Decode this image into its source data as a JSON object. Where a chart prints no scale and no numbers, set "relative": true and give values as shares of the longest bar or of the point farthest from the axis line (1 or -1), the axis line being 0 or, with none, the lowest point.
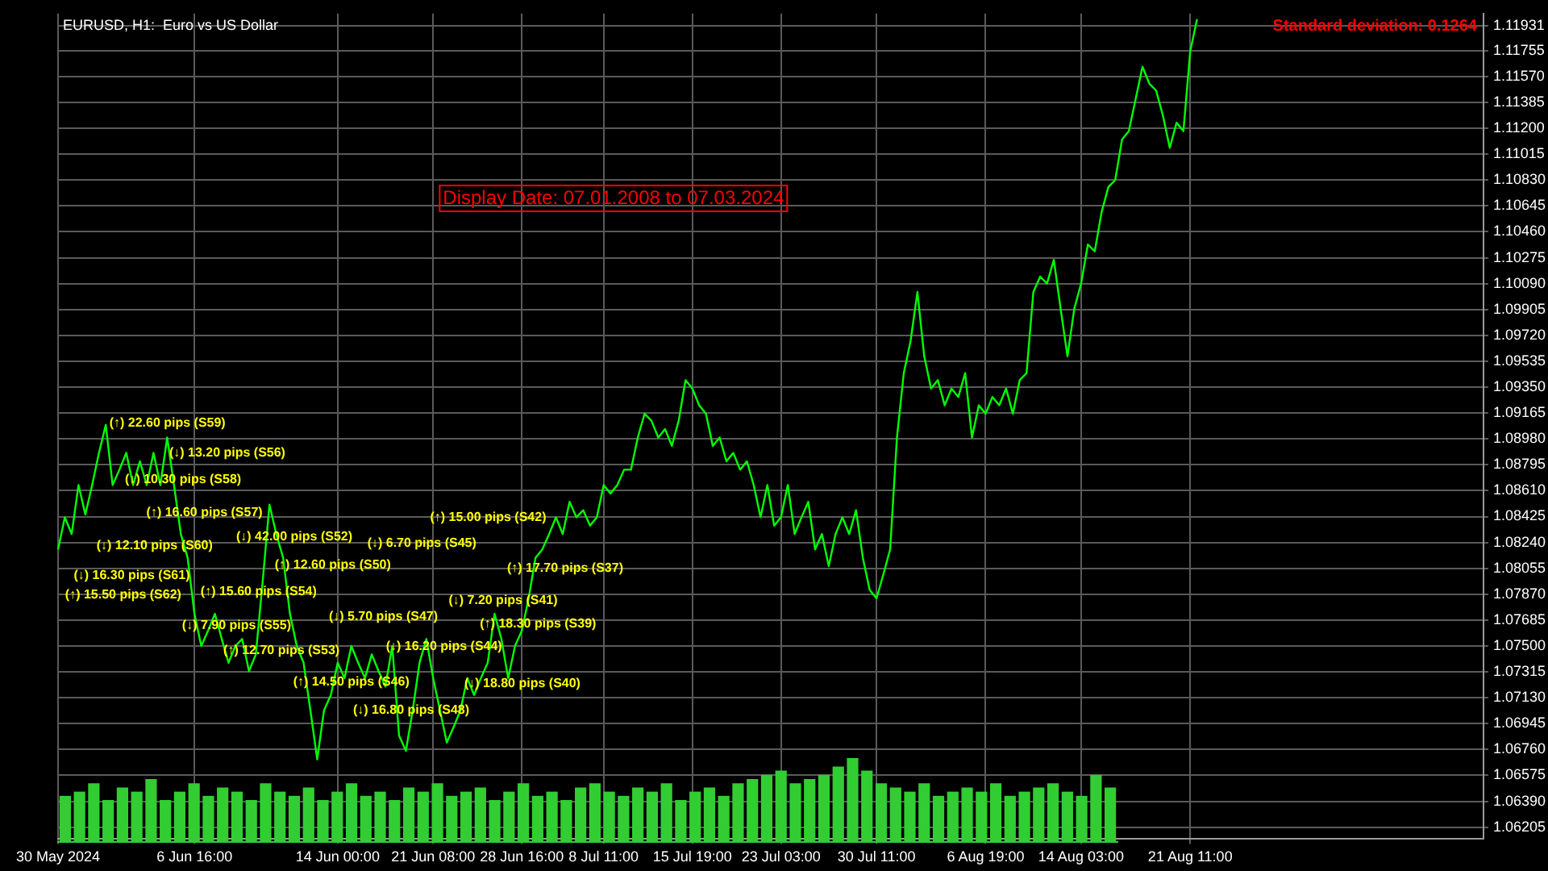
{
  "chart_data": [
    {
      "type": "line",
      "title": "EURUSD, H1:  Euro vs US Dollar",
      "annotations": [
        "(↑) 22.60 pips (S59)",
        "(↓) 13.20 pips (S56)",
        "(↓) 10.30 pips (S58)",
        "(↑) 16.60 pips (S57)",
        "(↓) 12.10 pips (S60)",
        "(↓) 16.30 pips (S61)",
        "(↓) 42.00 pips (S52)",
        "(↑) 15.50 pips (S62)",
        "(↓) 7.90 pips (S55)",
        "(↑) 17.70 pips (S37)",
        "(↑) 15.60 pips (S54)",
        "(↑) 12.70 pips (S53)",
        "(↓) 5.70 pips (S47)",
        "(↑) 14.50 pips (S46)",
        "(↓) 16.20 pips (S44)",
        "(↑) 18.30 pips (S39)",
        "(↓) 18.80 pips (S40)",
        "(↓) 16.80 pips (S48)",
        "(↑) 12.60 pips (S50)",
        "(↓) 7.20 pips (S41)",
        "(↓) 6.70 pips (S45)",
        "(↑) 15.00 pips (S42)",
        "Display Date: 07.01.2008 to 07.03.2024",
        "Standard deviation: 0.1264"
      ],
      "categories": [
        "30 May 2024",
        null,
        null,
        null,
        null,
        null,
        null,
        null,
        null,
        null,
        null,
        null,
        null,
        null,
        null,
        null,
        null,
        null,
        null,
        null,
        "6 Jun 16:00",
        null,
        null,
        null,
        null,
        null,
        null,
        null,
        null,
        null,
        null,
        null,
        null,
        null,
        null,
        null,
        null,
        null,
        null,
        null,
        null,
        "14 Jun 00:00",
        null,
        null,
        null,
        null,
        null,
        null,
        null,
        null,
        null,
        null,
        null,
        null,
        null,
        "21 Jun 08:00",
        null,
        null,
        null,
        null,
        null,
        null,
        null,
        null,
        null,
        null,
        null,
        null,
        "28 Jun 16:00",
        null,
        null,
        null,
        null,
        null,
        null,
        null,
        null,
        null,
        null,
        null,
        "8 Jul 11:00",
        null,
        null,
        null,
        null,
        null,
        null,
        null,
        null,
        null,
        null,
        null,
        null,
        "15 Jul 19:00",
        null,
        null,
        null,
        null,
        null,
        null,
        null,
        null,
        null,
        null,
        null,
        null,
        "23 Jul 03:00",
        null,
        null,
        null,
        null,
        null,
        null,
        null,
        null,
        null,
        null,
        null,
        null,
        null,
        "30 Jul 11:00",
        null,
        null,
        null,
        null,
        null,
        null,
        null,
        null,
        null,
        null,
        null,
        null,
        null,
        null,
        null,
        "6 Aug 19:00",
        null,
        null,
        null,
        null,
        null,
        null,
        null,
        null,
        null,
        null,
        null,
        null,
        null,
        "14 Aug 03:00",
        null,
        null,
        null,
        null,
        null,
        null,
        null,
        null,
        null,
        null,
        null,
        null,
        null,
        null,
        null,
        "21 Aug 11:00",
        null,
        null,
        null,
        null,
        null,
        null,
        null,
        null,
        null,
        null,
        null,
        null,
        null,
        null,
        null,
        null,
        null,
        null,
        null,
        null,
        null,
        null,
        null,
        null,
        null,
        null,
        null,
        null,
        null,
        null,
        null,
        null,
        null,
        null,
        null,
        null,
        null,
        null,
        null,
        null,
        null,
        null,
        null
      ],
      "values": [
        1.0819,
        1.0842,
        1.083,
        1.0865,
        1.0844,
        1.0865,
        1.0888,
        1.0908,
        1.0865,
        1.0876,
        1.0888,
        1.0865,
        1.0882,
        1.0865,
        1.0888,
        1.0865,
        1.0899,
        1.0865,
        1.083,
        1.0813,
        1.0773,
        1.075,
        1.0761,
        1.0773,
        1.0755,
        1.0738,
        1.075,
        1.0755,
        1.0732,
        1.0744,
        1.0796,
        1.0851,
        1.083,
        1.0813,
        1.0773,
        1.075,
        1.0738,
        1.0704,
        1.0669,
        1.0704,
        1.0715,
        1.0738,
        1.0727,
        1.075,
        1.0738,
        1.0727,
        1.0744,
        1.0732,
        1.0721,
        1.075,
        1.0686,
        1.0675,
        1.0704,
        1.0738,
        1.0755,
        1.0727,
        1.0704,
        1.0681,
        1.0692,
        1.0704,
        1.0727,
        1.0715,
        1.0727,
        1.0738,
        1.0773,
        1.0755,
        1.0727,
        1.075,
        1.0761,
        1.0784,
        1.0813,
        1.0819,
        1.083,
        1.0842,
        1.083,
        1.0853,
        1.0842,
        1.0847,
        1.0836,
        1.0842,
        1.0865,
        1.0859,
        1.0865,
        1.0876,
        1.0876,
        1.0899,
        1.0916,
        1.0911,
        1.0899,
        1.0905,
        1.0893,
        1.0911,
        1.094,
        1.0934,
        1.0922,
        1.0916,
        1.0893,
        1.0899,
        1.0882,
        1.0888,
        1.0876,
        1.0882,
        1.0865,
        1.0842,
        1.0865,
        1.0836,
        1.0842,
        1.0865,
        1.083,
        1.0842,
        1.0853,
        1.0819,
        1.083,
        1.0807,
        1.083,
        1.0842,
        1.083,
        1.0847,
        1.0813,
        1.079,
        1.0784,
        1.0801,
        1.0819,
        1.0899,
        1.0945,
        1.0968,
        1.1003,
        1.0957,
        1.0934,
        1.094,
        1.0922,
        1.0934,
        1.0928,
        1.0945,
        1.0899,
        1.0922,
        1.0916,
        1.0928,
        1.0922,
        1.0934,
        1.0916,
        1.094,
        1.0945,
        1.1003,
        1.1014,
        1.1009,
        1.1026,
        1.0991,
        1.0957,
        1.0991,
        1.1009,
        1.1037,
        1.1032,
        1.106,
        1.1078,
        1.1083,
        1.1112,
        1.1118,
        1.1141,
        1.1164,
        1.1152,
        1.1147,
        1.1129,
        1.1106,
        1.1124,
        1.1118,
        1.1175,
        1.1198,
        null,
        null,
        null,
        null,
        null,
        null,
        null,
        null,
        null,
        null,
        null,
        null,
        null,
        null,
        null,
        null,
        null,
        null,
        null,
        null,
        null,
        null,
        null,
        null,
        null,
        null,
        null,
        null,
        null,
        null,
        null,
        null,
        null,
        null,
        null,
        null,
        null,
        null,
        null,
        null,
        null,
        null
      ],
      "color": "#00ff00",
      "ylim": [
        1.0612,
        1.1202
      ],
      "yticks": [
        1.06205,
        {
          "value": 1.0639,
          "label": "1.06390"
        },
        1.06575,
        {
          "value": 1.0676,
          "label": "1.06760"
        },
        1.06945,
        {
          "value": 1.0713,
          "label": "1.07130"
        },
        1.07315,
        {
          "value": 1.075,
          "label": "1.07500"
        },
        1.07685,
        {
          "value": 1.0787,
          "label": "1.07870"
        },
        1.08055,
        {
          "value": 1.0824,
          "label": "1.08240"
        },
        1.08425,
        {
          "value": 1.0861,
          "label": "1.08610"
        },
        1.08795,
        {
          "value": 1.0898,
          "label": "1.08980"
        },
        1.09165,
        {
          "value": 1.0935,
          "label": "1.09350"
        },
        1.09535,
        {
          "value": 1.0972,
          "label": "1.09720"
        },
        1.09905,
        {
          "value": 1.1009,
          "label": "1.10090"
        },
        1.10275,
        {
          "value": 1.1046,
          "label": "1.10460"
        },
        1.10645,
        {
          "value": 1.1083,
          "label": "1.10830"
        },
        1.11015,
        {
          "value": 1.112,
          "label": "1.11200"
        },
        1.11385,
        {
          "value": 1.1157,
          "label": "1.11570"
        },
        1.11755,
        1.11931
      ],
      "grid": true
    },
    {
      "type": "bar",
      "relative": true,
      "color": "#32cd32",
      "categories": [
        null,
        null,
        null,
        null,
        null,
        null,
        null,
        null,
        null,
        null,
        null,
        null,
        null,
        null,
        null,
        null,
        null,
        null,
        null,
        null,
        null,
        null,
        null,
        null,
        null,
        null,
        null,
        null,
        null,
        null,
        null,
        null,
        null,
        null,
        null,
        null,
        null,
        null,
        null,
        null,
        null,
        null,
        null,
        null,
        null,
        null,
        null,
        null,
        null,
        null,
        null,
        null,
        null,
        null,
        null,
        null,
        null,
        null,
        null,
        null,
        null,
        null,
        null,
        null,
        null,
        null,
        null,
        null,
        null,
        null,
        null,
        null,
        null,
        null
      ],
      "values": [
        0.55,
        0.6,
        0.7,
        0.5,
        0.65,
        0.6,
        0.75,
        0.5,
        0.6,
        0.7,
        0.55,
        0.65,
        0.6,
        0.5,
        0.7,
        0.6,
        0.55,
        0.65,
        0.5,
        0.6,
        0.7,
        0.55,
        0.6,
        0.5,
        0.65,
        0.6,
        0.7,
        0.55,
        0.6,
        0.65,
        0.5,
        0.6,
        0.7,
        0.55,
        0.6,
        0.5,
        0.65,
        0.7,
        0.6,
        0.55,
        0.65,
        0.6,
        0.7,
        0.5,
        0.6,
        0.65,
        0.55,
        0.7,
        0.75,
        0.8,
        0.85,
        0.7,
        0.75,
        0.8,
        0.9,
        1,
        0.85,
        0.7,
        0.65,
        0.6,
        0.7,
        0.55,
        0.6,
        0.65,
        0.6,
        0.7,
        0.55,
        0.6,
        0.65,
        0.7,
        0.6,
        0.55,
        0.8,
        0.65
      ]
    }
  ]
}
